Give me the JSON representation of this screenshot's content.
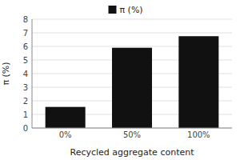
{
  "chart_data": {
    "type": "bar",
    "categories": [
      "0%",
      "50%",
      "100%"
    ],
    "series": [
      {
        "name": "π (%)",
        "color": "#111111",
        "values": [
          1.55,
          5.9,
          6.75
        ]
      }
    ],
    "xlabel": "Recycled aggregate content",
    "ylabel": "π (%)",
    "ylim": [
      0,
      8
    ],
    "yticks": [
      0,
      1,
      2,
      3,
      4,
      5,
      6,
      7,
      8
    ],
    "grid": true,
    "legend": "top"
  }
}
